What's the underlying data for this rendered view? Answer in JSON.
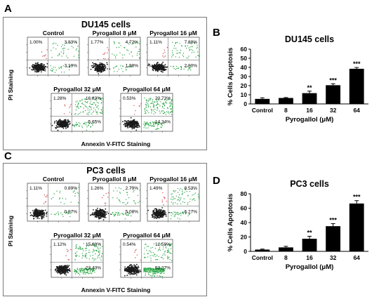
{
  "panel_labels": {
    "a": "A",
    "b": "B",
    "c": "C",
    "d": "D"
  },
  "flow_top": {
    "title": "DU145 cells",
    "y_axis_label": "PI Staining",
    "x_axis_label": "Annexin V-FITC Staining",
    "plots": [
      {
        "label": "Control",
        "ul": "1.00%",
        "ur": "3.83%",
        "lr": "3.19%",
        "ll": ""
      },
      {
        "label": "Pyrogallol 8 μM",
        "ul": "1.77%",
        "ur": "4.72%",
        "lr": "1.98%",
        "ll": ""
      },
      {
        "label": "Pyrogallol 16 μM",
        "ul": "1.11%",
        "ur": "7.88%",
        "lr": "2.80%",
        "ll": ""
      },
      {
        "label": "Pyrogallol 32 μM",
        "ul": "1.28%",
        "ur": "16.83%",
        "lr": "5.65%",
        "ll": ""
      },
      {
        "label": "Pyrogallol 64 μM",
        "ul": "0.53%",
        "ur": "22.73%",
        "lr": "14.24%",
        "ll": ""
      }
    ]
  },
  "flow_bottom": {
    "title": "PC3 cells",
    "y_axis_label": "PI Staining",
    "x_axis_label": "Annexin V-FITC Staining",
    "plots": [
      {
        "label": "Control",
        "ul": "1.11%",
        "ur": "0.89%",
        "lr": "0.97%",
        "ll": ""
      },
      {
        "label": "Pyrogallol 8 μM",
        "ul": "1.26%",
        "ur": "2.79%",
        "lr": "5.08%",
        "ll": ""
      },
      {
        "label": "Pyrogallol 16 μM",
        "ul": "1.49%",
        "ur": "8.53%",
        "lr": "6.27%",
        "ll": ""
      },
      {
        "label": "Pyrogallol 32 μM",
        "ul": "1.12%",
        "ur": "15.69%",
        "lr": "23.43%",
        "ll": ""
      },
      {
        "label": "Pyrogallol 64 μM",
        "ul": "0.54%",
        "ur": "12.59%",
        "lr": "53.27%",
        "ll": ""
      }
    ]
  },
  "chart_data": [
    {
      "type": "bar",
      "title": "DU145 cells",
      "xlabel": "Pyrogallol (μM)",
      "ylabel": "% Cells Apoptosis",
      "categories": [
        "Control",
        "8",
        "16",
        "32",
        "64"
      ],
      "values": [
        5.5,
        6.5,
        11.8,
        20.5,
        38.5
      ],
      "errors": [
        1.2,
        0.5,
        2.2,
        1.6,
        1.4
      ],
      "significance": [
        "",
        "",
        "**",
        "***",
        "***"
      ],
      "ylim": [
        0,
        60
      ],
      "yticks": [
        0,
        10,
        20,
        30,
        40,
        50,
        60
      ],
      "bar_color": "#000000",
      "grid": false
    },
    {
      "type": "bar",
      "title": "PC3 cells",
      "xlabel": "Pyrogallol (μM)",
      "ylabel": "% Cells Apoptosis",
      "categories": [
        "Control",
        "8",
        "16",
        "32",
        "64"
      ],
      "values": [
        2.5,
        5.5,
        17.5,
        35.0,
        66.5
      ],
      "errors": [
        0.7,
        1.5,
        3.5,
        3.5,
        4.0
      ],
      "significance": [
        "",
        "",
        "**",
        "***",
        "***"
      ],
      "ylim": [
        0,
        80
      ],
      "yticks": [
        0,
        20,
        40,
        60,
        80
      ],
      "bar_color": "#000000",
      "grid": false
    }
  ],
  "colors": {
    "live_cells": "#1a1a1a",
    "green_events": "#2fa84a",
    "red_events": "#d24a4a",
    "gate_line": "#8c8c8c"
  }
}
